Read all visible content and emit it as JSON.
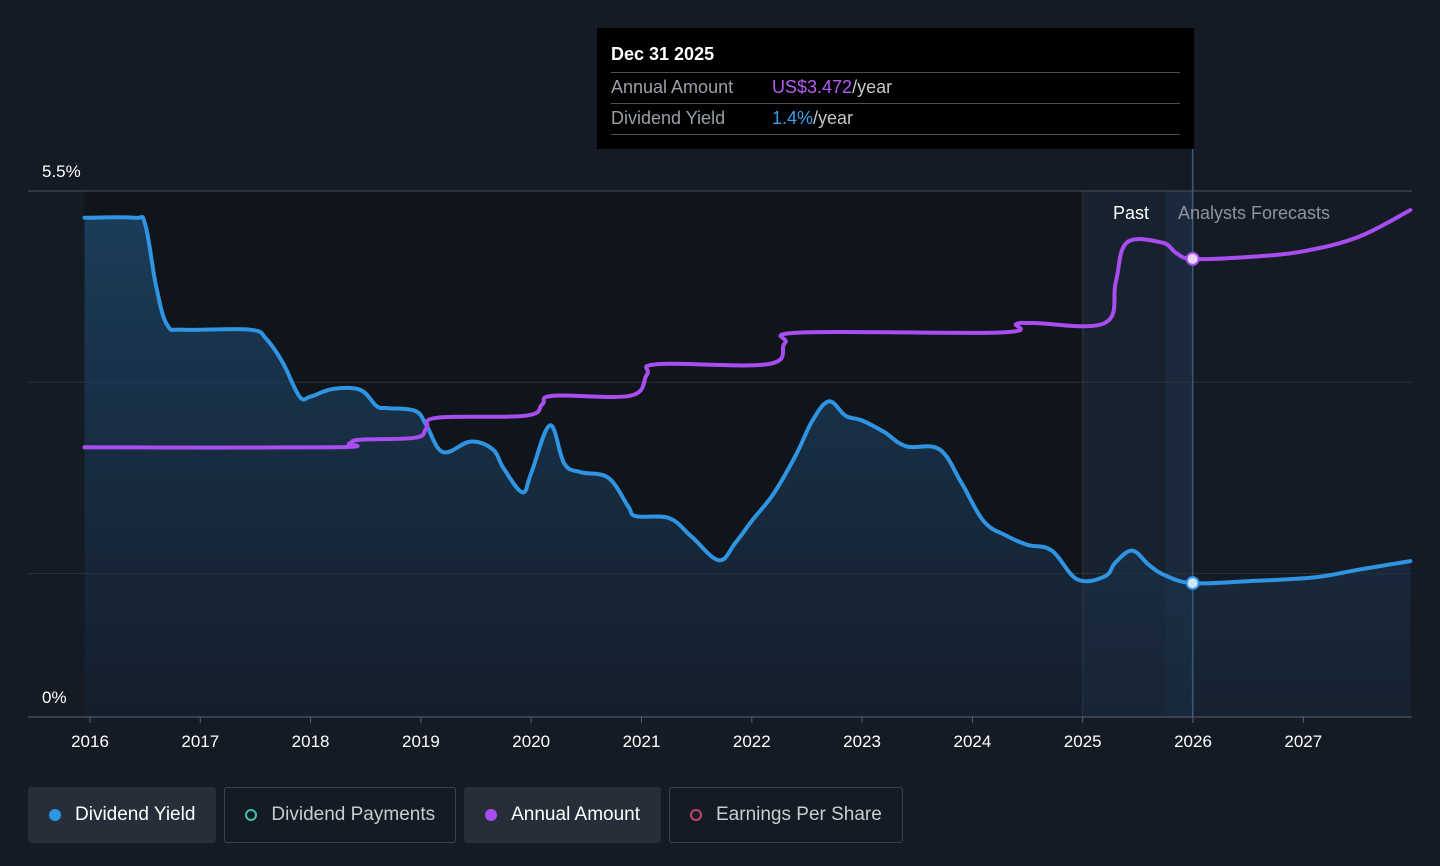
{
  "chart_data": {
    "type": "line",
    "x_axis": {
      "tick_labels": [
        "2016",
        "2017",
        "2018",
        "2019",
        "2020",
        "2021",
        "2022",
        "2023",
        "2024",
        "2025",
        "2026",
        "2027"
      ],
      "range": [
        2015.95,
        2027.97
      ]
    },
    "y_axis": {
      "tick_labels": [
        "5.5%",
        "0%"
      ],
      "range": [
        0,
        5.5
      ]
    },
    "grid": true,
    "regions": {
      "past_label": "Past",
      "forecast_label": "Analysts Forecasts",
      "today": 2025.997
    },
    "series": [
      {
        "name": "Dividend Yield",
        "color": "#2f94e2",
        "area": true,
        "points": [
          [
            2015.95,
            5.22
          ],
          [
            2016.4,
            5.22
          ],
          [
            2016.5,
            5.15
          ],
          [
            2016.6,
            4.5
          ],
          [
            2016.7,
            4.1
          ],
          [
            2016.85,
            4.05
          ],
          [
            2017.45,
            4.05
          ],
          [
            2017.6,
            3.95
          ],
          [
            2017.75,
            3.7
          ],
          [
            2017.9,
            3.35
          ],
          [
            2018.0,
            3.35
          ],
          [
            2018.2,
            3.43
          ],
          [
            2018.45,
            3.42
          ],
          [
            2018.6,
            3.25
          ],
          [
            2018.7,
            3.23
          ],
          [
            2018.95,
            3.2
          ],
          [
            2019.05,
            3.05
          ],
          [
            2019.2,
            2.77
          ],
          [
            2019.45,
            2.88
          ],
          [
            2019.65,
            2.8
          ],
          [
            2019.75,
            2.6
          ],
          [
            2019.92,
            2.35
          ],
          [
            2020.0,
            2.55
          ],
          [
            2020.17,
            3.05
          ],
          [
            2020.3,
            2.65
          ],
          [
            2020.45,
            2.56
          ],
          [
            2020.7,
            2.5
          ],
          [
            2020.88,
            2.2
          ],
          [
            2020.95,
            2.1
          ],
          [
            2021.25,
            2.08
          ],
          [
            2021.45,
            1.89
          ],
          [
            2021.7,
            1.64
          ],
          [
            2021.85,
            1.82
          ],
          [
            2022.0,
            2.05
          ],
          [
            2022.2,
            2.34
          ],
          [
            2022.4,
            2.74
          ],
          [
            2022.55,
            3.1
          ],
          [
            2022.7,
            3.3
          ],
          [
            2022.85,
            3.15
          ],
          [
            2023.0,
            3.1
          ],
          [
            2023.2,
            2.98
          ],
          [
            2023.4,
            2.83
          ],
          [
            2023.7,
            2.8
          ],
          [
            2023.9,
            2.45
          ],
          [
            2024.1,
            2.05
          ],
          [
            2024.3,
            1.9
          ],
          [
            2024.5,
            1.8
          ],
          [
            2024.72,
            1.74
          ],
          [
            2024.95,
            1.44
          ],
          [
            2025.2,
            1.47
          ],
          [
            2025.3,
            1.62
          ],
          [
            2025.45,
            1.74
          ],
          [
            2025.6,
            1.59
          ],
          [
            2025.75,
            1.48
          ],
          [
            2025.997,
            1.4
          ],
          [
            2026.5,
            1.42
          ],
          [
            2027.1,
            1.46
          ],
          [
            2027.5,
            1.54
          ],
          [
            2027.97,
            1.63
          ]
        ]
      },
      {
        "name": "Annual Amount",
        "color": "#a84df0",
        "area": false,
        "points": [
          [
            2015.95,
            2.82
          ],
          [
            2018.2,
            2.82
          ],
          [
            2018.35,
            2.86
          ],
          [
            2018.45,
            2.9
          ],
          [
            2018.95,
            2.92
          ],
          [
            2019.05,
            3.02
          ],
          [
            2019.15,
            3.13
          ],
          [
            2019.95,
            3.15
          ],
          [
            2020.1,
            3.27
          ],
          [
            2020.2,
            3.36
          ],
          [
            2020.9,
            3.36
          ],
          [
            2021.05,
            3.58
          ],
          [
            2021.15,
            3.69
          ],
          [
            2022.15,
            3.69
          ],
          [
            2022.3,
            3.91
          ],
          [
            2022.45,
            4.02
          ],
          [
            2024.25,
            4.02
          ],
          [
            2024.4,
            4.11
          ],
          [
            2024.55,
            4.12
          ],
          [
            2025.2,
            4.12
          ],
          [
            2025.3,
            4.55
          ],
          [
            2025.4,
            4.96
          ],
          [
            2025.72,
            4.96
          ],
          [
            2025.85,
            4.85
          ],
          [
            2025.997,
            4.79
          ],
          [
            2026.5,
            4.81
          ],
          [
            2027.0,
            4.87
          ],
          [
            2027.5,
            5.02
          ],
          [
            2027.97,
            5.3
          ]
        ]
      }
    ],
    "tooltip": {
      "date": "Dec 31 2025",
      "annual_amount_label": "Annual Amount",
      "annual_amount_value": "US$3.472",
      "annual_amount_unit": "/year",
      "dividend_yield_label": "Dividend Yield",
      "dividend_yield_value": "1.4%",
      "dividend_yield_unit": "/year"
    }
  },
  "legend": [
    {
      "label": "Dividend Yield",
      "color": "#2f94e2",
      "active": true,
      "filled": true
    },
    {
      "label": "Dividend Payments",
      "color": "#3fbfae",
      "active": false,
      "filled": false
    },
    {
      "label": "Annual Amount",
      "color": "#a84df0",
      "active": true,
      "filled": true
    },
    {
      "label": "Earnings Per Share",
      "color": "#c2456f",
      "active": false,
      "filled": false
    }
  ]
}
